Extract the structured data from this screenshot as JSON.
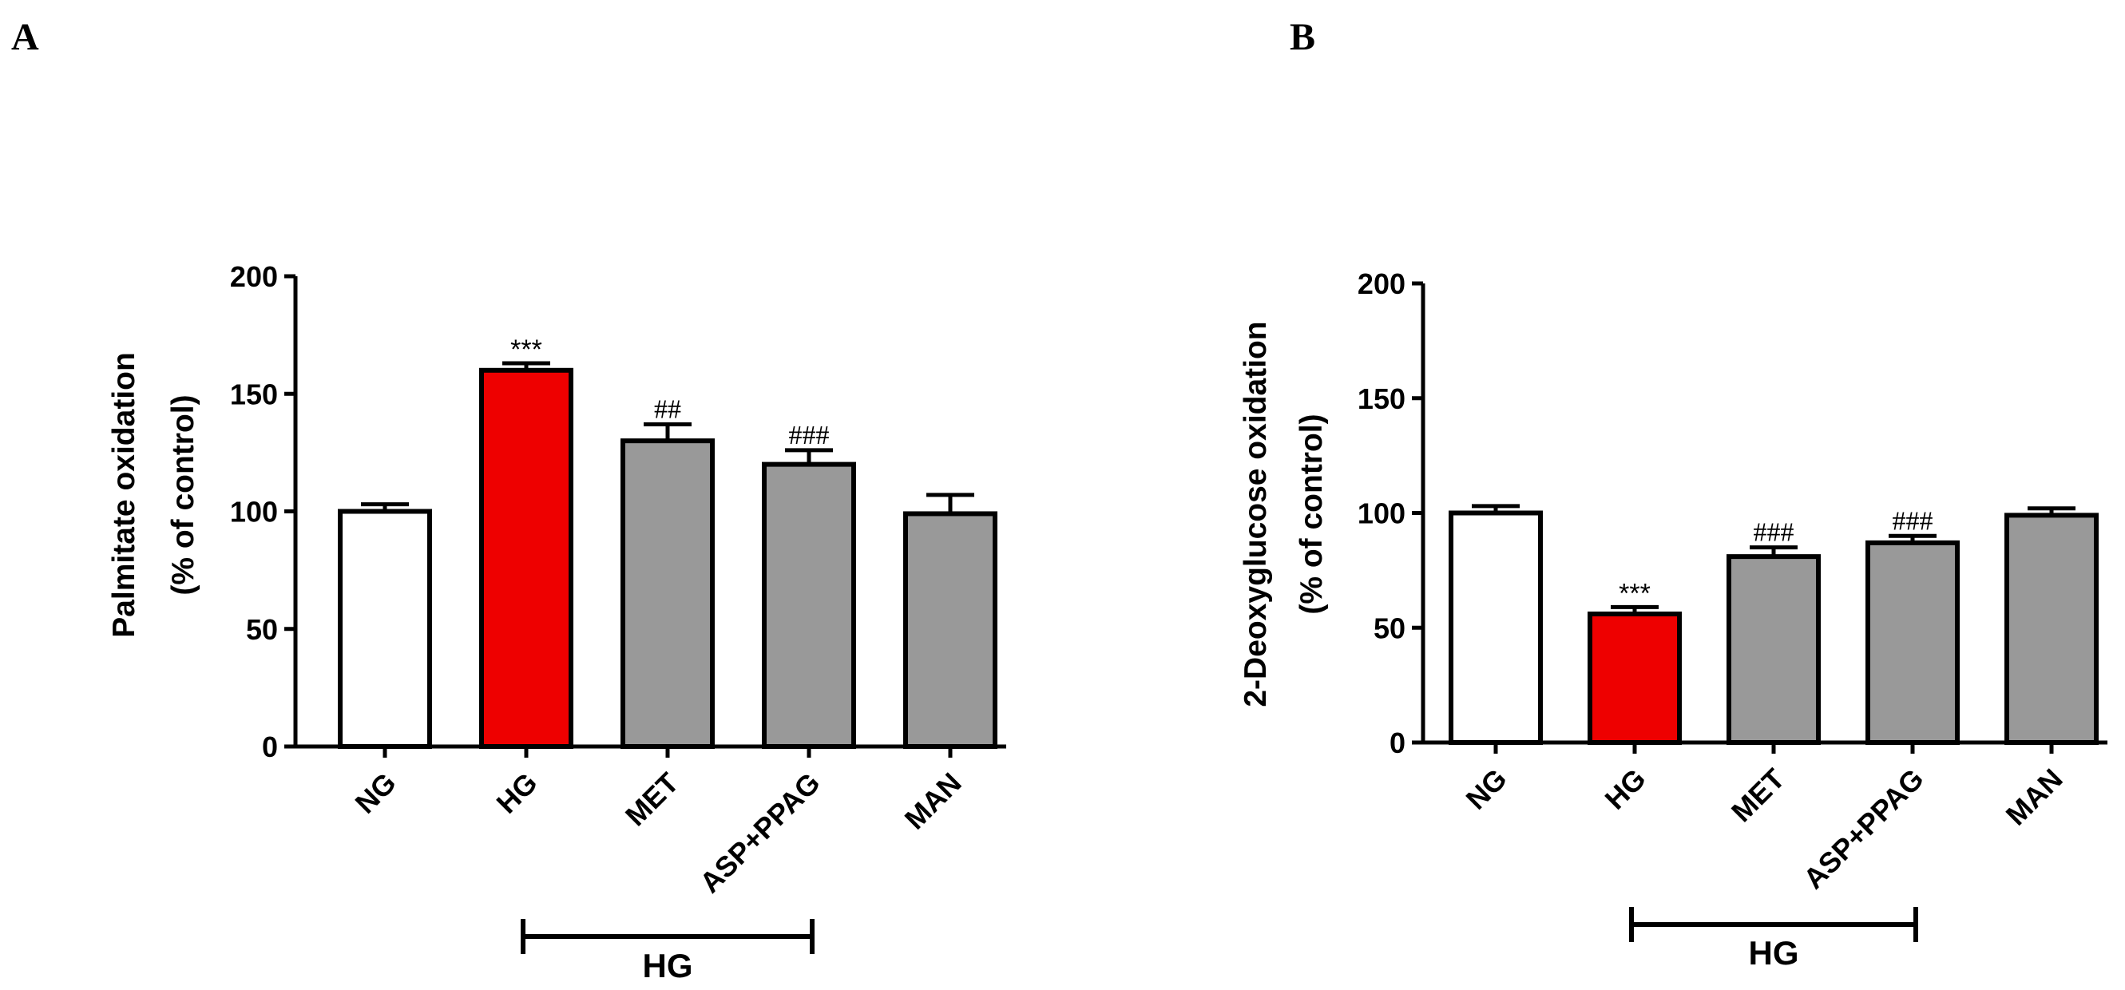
{
  "chart_data": [
    {
      "type": "bar",
      "panel": "A",
      "categories": [
        "NG",
        "HG",
        "MET",
        "ASP+PPAG",
        "MAN"
      ],
      "values": [
        100,
        160,
        130,
        120,
        99
      ],
      "errors": [
        3,
        3,
        7,
        6,
        8
      ],
      "bar_colors": [
        "#ffffff",
        "#ee0000",
        "#999999",
        "#999999",
        "#999999"
      ],
      "annotations": [
        "",
        "***",
        "##",
        "###",
        ""
      ],
      "ylabel": [
        "Palmitate oxidation",
        "(% of control)"
      ],
      "ylim": [
        0,
        200
      ],
      "yticks": [
        0,
        50,
        100,
        150,
        200
      ],
      "group_bracket": {
        "label": "HG",
        "from": "HG",
        "to": "ASP+PPAG"
      }
    },
    {
      "type": "bar",
      "panel": "B",
      "categories": [
        "NG",
        "HG",
        "MET",
        "ASP+PPAG",
        "MAN"
      ],
      "values": [
        100,
        56,
        81,
        87,
        99
      ],
      "errors": [
        3,
        3,
        4,
        3,
        3
      ],
      "bar_colors": [
        "#ffffff",
        "#ee0000",
        "#999999",
        "#999999",
        "#999999"
      ],
      "annotations": [
        "",
        "***",
        "###",
        "###",
        ""
      ],
      "ylabel": [
        "2-Deoxyglucose oxidation",
        "(% of control)"
      ],
      "ylim": [
        0,
        200
      ],
      "yticks": [
        0,
        50,
        100,
        150,
        200
      ],
      "group_bracket": {
        "label": "HG",
        "from": "HG",
        "to": "ASP+PPAG"
      }
    }
  ]
}
